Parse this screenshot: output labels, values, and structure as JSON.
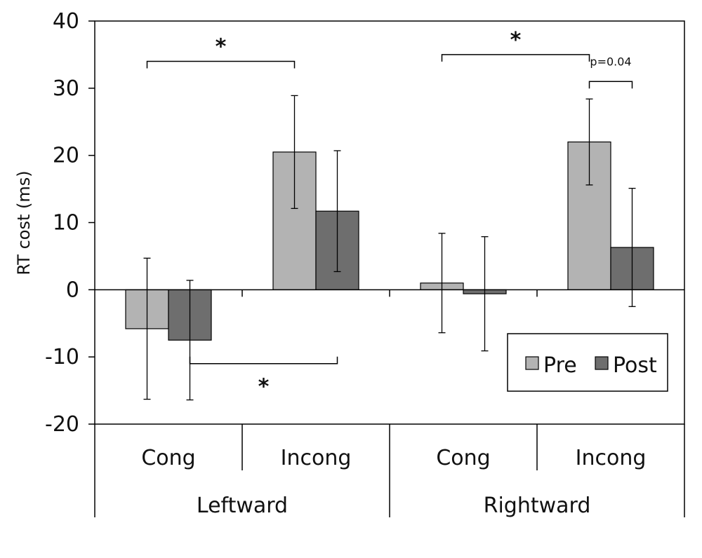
{
  "chart_data": {
    "type": "bar",
    "ylabel": "RT cost (ms)",
    "ylim": [
      -20,
      40
    ],
    "yticks": [
      40,
      30,
      20,
      10,
      0,
      -10,
      -20
    ],
    "groups": [
      "Leftward",
      "Rightward"
    ],
    "categories": [
      "Cong",
      "Incong",
      "Cong",
      "Incong"
    ],
    "series": [
      {
        "name": "Pre",
        "color": "#b3b3b3",
        "values": [
          -5.8,
          20.5,
          1.0,
          22.0
        ],
        "error": [
          10.5,
          8.4,
          7.4,
          6.4
        ]
      },
      {
        "name": "Post",
        "color": "#6e6e6e",
        "values": [
          -7.5,
          11.7,
          -0.6,
          6.3
        ],
        "error": [
          8.9,
          9.0,
          8.5,
          8.8
        ]
      }
    ],
    "legend": {
      "position": "bottom-right",
      "entries": [
        "Pre",
        "Post"
      ]
    },
    "grid": false,
    "annotations": [
      {
        "label": "*",
        "from": {
          "category": 0,
          "series": 0
        },
        "to": {
          "category": 1,
          "series": 0
        },
        "y": 34,
        "tick": "down",
        "text_y": 36.6
      },
      {
        "label": "*",
        "from": {
          "category": 0,
          "series": 1
        },
        "to": {
          "category": 1,
          "series": 1
        },
        "y": -11,
        "tick": "up",
        "text_y": -14
      },
      {
        "label": "*",
        "from": {
          "category": 2,
          "series": 0
        },
        "to": {
          "category": 3,
          "series": 0
        },
        "y": 35,
        "tick": "down",
        "text_y": 37.6
      },
      {
        "label": "p=0.04",
        "from": {
          "category": 3,
          "series": 0
        },
        "to": {
          "category": 3,
          "series": 1
        },
        "y": 31,
        "tick": "down",
        "text_y": 33.4
      }
    ]
  }
}
